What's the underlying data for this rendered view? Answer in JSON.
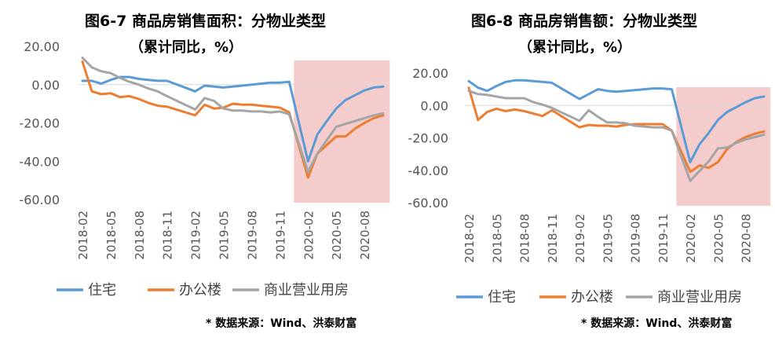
{
  "chart_data": [
    {
      "type": "line",
      "title": "图6-7 商品房销售面积：分物业类型",
      "subtitle": "（累计同比，%）",
      "source": "* 数据来源：Wind、洪泰财富",
      "ylim": [
        -60,
        20
      ],
      "y_ticks": [
        "20.00",
        "0.00",
        "-20.00",
        "-40.00",
        "-60.00"
      ],
      "y_tick_values": [
        20,
        0,
        -20,
        -40,
        -60
      ],
      "x": [
        "2018-02",
        "2018-03",
        "2018-04",
        "2018-05",
        "2018-06",
        "2018-07",
        "2018-08",
        "2018-09",
        "2018-10",
        "2018-11",
        "2018-12",
        "2019-01",
        "2019-02",
        "2019-03",
        "2019-04",
        "2019-05",
        "2019-06",
        "2019-07",
        "2019-08",
        "2019-09",
        "2019-10",
        "2019-11",
        "2019-12",
        "2020-01",
        "2020-02",
        "2020-03",
        "2020-04",
        "2020-05",
        "2020-06",
        "2020-07",
        "2020-08",
        "2020-09",
        "2020-10"
      ],
      "x_tick_labels": [
        "2018-02",
        "2018-05",
        "2018-08",
        "2018-11",
        "2019-02",
        "2019-05",
        "2019-08",
        "2019-11",
        "2020-02",
        "2020-05",
        "2020-08"
      ],
      "shaded_region": [
        "2020-01",
        "2020-10"
      ],
      "grid": false,
      "legend_position": "bottom",
      "series": [
        {
          "name": "住宅",
          "color": "#5b9bd5",
          "values": [
            2.0,
            2.0,
            0.5,
            2.5,
            4.0,
            4.0,
            3.0,
            2.5,
            2.0,
            2.0,
            null,
            null,
            -3.5,
            -0.5,
            -1.0,
            -1.5,
            -1.0,
            -0.5,
            0.0,
            0.5,
            1.0,
            1.0,
            1.5,
            null,
            -40.0,
            -26.0,
            -19.0,
            -12.5,
            -8.0,
            -5.5,
            -3.0,
            -1.5,
            -1.0
          ]
        },
        {
          "name": "办公楼",
          "color": "#ed7d31",
          "values": [
            12.0,
            -3.5,
            -5.0,
            -4.5,
            -6.5,
            -6.0,
            -7.5,
            -9.5,
            -11.0,
            -11.5,
            null,
            null,
            -16.0,
            -10.5,
            -12.5,
            -12.0,
            -10.0,
            -10.5,
            -10.5,
            -11.0,
            -11.5,
            -12.0,
            -14.5,
            null,
            -48.5,
            -36.0,
            -31.5,
            -27.0,
            -27.0,
            -23.0,
            -20.0,
            -17.5,
            -16.0
          ]
        },
        {
          "name": "商业营业用房",
          "color": "#a5a5a5",
          "values": [
            14.0,
            9.0,
            7.0,
            6.0,
            3.5,
            1.5,
            0.0,
            -2.0,
            -3.5,
            -6.0,
            null,
            null,
            -13.0,
            -7.0,
            -8.5,
            -12.5,
            -13.5,
            -13.5,
            -14.0,
            -14.0,
            -14.5,
            -14.0,
            -15.5,
            null,
            -45.5,
            -36.0,
            -29.0,
            -22.0,
            -20.5,
            -19.0,
            -17.5,
            -16.0,
            -15.0
          ]
        }
      ]
    },
    {
      "type": "line",
      "title": "图6-8 商品房销售额：分物业类型",
      "subtitle": "（累计同比，%）",
      "source": "* 数据来源：Wind、洪泰财富",
      "ylim": [
        -60,
        20
      ],
      "y_ticks": [
        "20.00",
        "0.00",
        "-20.00",
        "-40.00",
        "-60.00"
      ],
      "y_tick_values": [
        20,
        0,
        -20,
        -40,
        -60
      ],
      "x": [
        "2018-02",
        "2018-03",
        "2018-04",
        "2018-05",
        "2018-06",
        "2018-07",
        "2018-08",
        "2018-09",
        "2018-10",
        "2018-11",
        "2018-12",
        "2019-01",
        "2019-02",
        "2019-03",
        "2019-04",
        "2019-05",
        "2019-06",
        "2019-07",
        "2019-08",
        "2019-09",
        "2019-10",
        "2019-11",
        "2019-12",
        "2020-01",
        "2020-02",
        "2020-03",
        "2020-04",
        "2020-05",
        "2020-06",
        "2020-07",
        "2020-08",
        "2020-09",
        "2020-10"
      ],
      "x_tick_labels": [
        "2018-02",
        "2018-05",
        "2018-08",
        "2018-11",
        "2019-02",
        "2019-05",
        "2019-08",
        "2019-11",
        "2020-02",
        "2020-05",
        "2020-08"
      ],
      "shaded_region": [
        "2020-01",
        "2020-10"
      ],
      "grid": false,
      "legend_position": "bottom",
      "series": [
        {
          "name": "住宅",
          "color": "#5b9bd5",
          "values": [
            15.0,
            11.0,
            9.0,
            12.0,
            14.5,
            15.5,
            15.5,
            15.0,
            14.5,
            14.0,
            null,
            null,
            4.0,
            7.0,
            10.0,
            9.0,
            8.5,
            9.0,
            9.5,
            10.0,
            10.5,
            10.5,
            10.0,
            null,
            -35.0,
            -24.0,
            -17.0,
            -9.0,
            -4.0,
            -1.0,
            2.0,
            4.5,
            5.5
          ]
        },
        {
          "name": "办公楼",
          "color": "#ed7d31",
          "values": [
            11.0,
            -9.0,
            -4.0,
            -2.0,
            -3.5,
            -2.5,
            -3.5,
            -5.0,
            -6.5,
            -3.0,
            null,
            null,
            -13.5,
            -12.0,
            -12.5,
            -12.5,
            -13.0,
            -12.0,
            -11.5,
            -11.5,
            -11.5,
            -11.5,
            -15.5,
            null,
            -41.0,
            -37.0,
            -38.5,
            -35.0,
            -27.0,
            -22.5,
            -19.5,
            -17.5,
            -16.0
          ]
        },
        {
          "name": "商业营业用房",
          "color": "#a5a5a5",
          "values": [
            9.0,
            7.0,
            6.5,
            5.5,
            4.5,
            4.5,
            4.5,
            2.0,
            0.5,
            -1.5,
            null,
            null,
            -9.5,
            -3.0,
            -7.0,
            -10.5,
            -10.5,
            -11.0,
            -12.5,
            -13.0,
            -13.5,
            -13.5,
            -15.5,
            null,
            -46.5,
            -40.5,
            -34.5,
            -26.5,
            -26.0,
            -23.0,
            -21.0,
            -19.5,
            -18.0
          ]
        }
      ]
    }
  ]
}
